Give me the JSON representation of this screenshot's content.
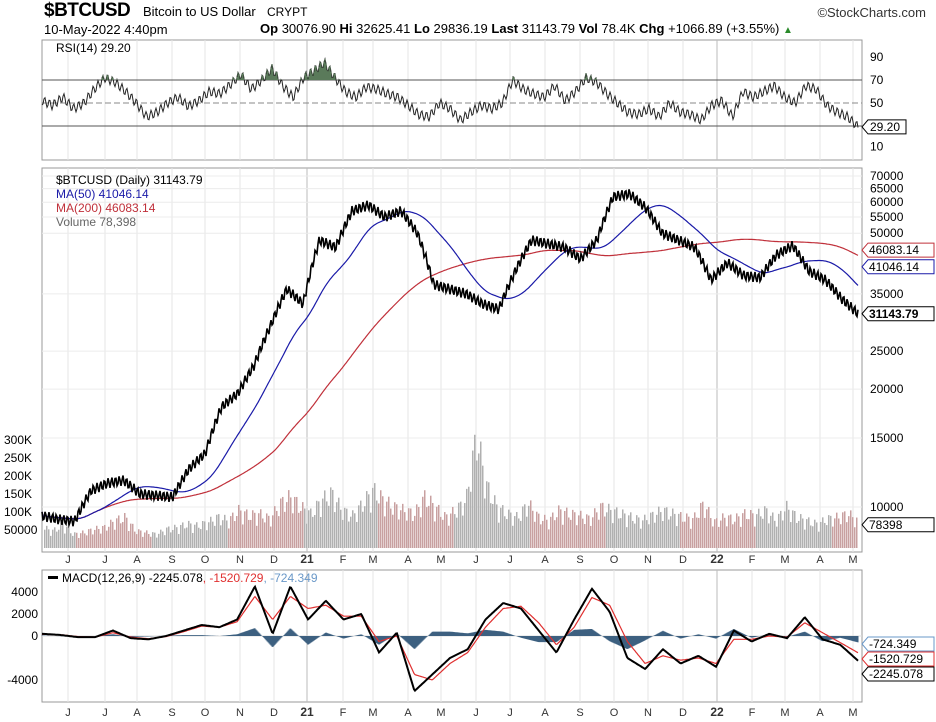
{
  "header": {
    "symbol": "$BTCUSD",
    "name": "Bitcoin to US Dollar",
    "exchange": "CRYPT",
    "brand": "©StockCharts.com",
    "date": "10-May-2022 4:40pm",
    "op_label": "Op",
    "op": "30076.90",
    "hi_label": "Hi",
    "hi": "32625.41",
    "lo_label": "Lo",
    "lo": "29836.19",
    "last_label": "Last",
    "last": "31143.79",
    "vol_label": "Vol",
    "vol": "78.4K",
    "chg_label": "Chg",
    "chg": "+1066.89 (+3.55%)",
    "up_arrow": "▲"
  },
  "colors": {
    "price": "#000000",
    "ma50": "#1a1aa8",
    "ma200": "#c0303a",
    "volume": "#b0a0a0",
    "rsi_fill": "#5a7a5a",
    "macd": "#000000",
    "signal": "#e03030",
    "hist": "#3d6080",
    "hist_label": "#6a98c8"
  },
  "chart_data": [
    {
      "type": "line",
      "title": "RSI(14) 29.20",
      "ylim": [
        0,
        100
      ],
      "yticks": [
        "90",
        "70",
        "50",
        "10"
      ],
      "current_label": "29.20",
      "values": [
        52,
        48,
        55,
        45,
        50,
        62,
        72,
        68,
        60,
        50,
        38,
        42,
        50,
        55,
        47,
        52,
        60,
        58,
        66,
        75,
        62,
        70,
        80,
        65,
        55,
        72,
        78,
        85,
        72,
        60,
        55,
        64,
        62,
        58,
        55,
        48,
        40,
        38,
        50,
        45,
        35,
        42,
        48,
        45,
        50,
        70,
        62,
        58,
        55,
        65,
        52,
        60,
        72,
        68,
        58,
        50,
        42,
        40,
        45,
        38,
        50,
        42,
        40,
        35,
        48,
        52,
        38,
        60,
        55,
        60,
        65,
        55,
        50,
        65,
        62,
        48,
        42,
        38,
        29.2
      ]
    },
    {
      "type": "line",
      "title": "$BTCUSD (Daily) 31143.79",
      "scale": "log",
      "ylim": [
        8500,
        72000
      ],
      "yticks": [
        "70000",
        "65000",
        "60000",
        "55000",
        "50000",
        "35000",
        "25000",
        "20000",
        "15000",
        "10000"
      ],
      "legend": [
        "$BTCUSD (Daily) 31143.79",
        "MA(50) 41046.14",
        "MA(200) 46083.14",
        "Volume 78,398"
      ],
      "value_labels": {
        "ma200": "46083.14",
        "ma50": "41046.14",
        "last": "31143.79",
        "volume": "78398"
      },
      "price": [
        9500,
        9300,
        9200,
        11000,
        11500,
        11700,
        10800,
        10700,
        10600,
        12500,
        13700,
        18000,
        19500,
        23000,
        29000,
        36000,
        33000,
        48000,
        46000,
        57000,
        59000,
        55000,
        57000,
        50000,
        37000,
        36000,
        35000,
        33000,
        32000,
        40000,
        48000,
        47000,
        46000,
        43000,
        48000,
        62000,
        63000,
        58000,
        50000,
        48000,
        46000,
        38000,
        42000,
        39000,
        38500,
        44000,
        46500,
        40000,
        38000,
        34000,
        31143.79
      ],
      "volume_ticks": [
        "300K",
        "250K",
        "200K",
        "150K",
        "100K",
        "50000"
      ],
      "volume": [
        60,
        50,
        70,
        40,
        45,
        55,
        60,
        80,
        90,
        50,
        45,
        40,
        55,
        60,
        70,
        65,
        75,
        90,
        80,
        110,
        95,
        100,
        85,
        130,
        150,
        120,
        100,
        140,
        160,
        110,
        95,
        130,
        170,
        140,
        120,
        110,
        100,
        150,
        120,
        90,
        110,
        140,
        330,
        180,
        120,
        100,
        90,
        130,
        90,
        80,
        110,
        100,
        95,
        85,
        120,
        110,
        100,
        90,
        80,
        95,
        110,
        100,
        90,
        85,
        130,
        75,
        90,
        85,
        100,
        95,
        110,
        80,
        120,
        90,
        80,
        70,
        85,
        90,
        100,
        78.398
      ]
    },
    {
      "type": "line",
      "title": "MACD(12,26,9)",
      "values_label": {
        "macd": "-2245.078",
        "signal": ", -1520.729",
        "hist": ", -724.349"
      },
      "ylim": [
        -6000,
        6000
      ],
      "yticks": [
        "4000",
        "2000",
        "0",
        "-4000"
      ],
      "macd": [
        200,
        100,
        -100,
        -100,
        500,
        -200,
        -300,
        0,
        500,
        1000,
        800,
        1500,
        4500,
        200,
        4500,
        1500,
        3200,
        1500,
        2000,
        -1500,
        300,
        -5000,
        -3500,
        -2000,
        -1200,
        1500,
        3000,
        2500,
        500,
        -1500,
        1500,
        4300,
        2200,
        -2000,
        -3000,
        -1200,
        -2500,
        -1800,
        -2800,
        500,
        -500,
        200,
        -200,
        1700,
        -300,
        -800,
        -2245.078
      ],
      "signal": [
        150,
        120,
        -50,
        -100,
        300,
        -100,
        -250,
        -50,
        400,
        900,
        800,
        1300,
        3600,
        1500,
        3600,
        2500,
        2800,
        1800,
        1800,
        -500,
        0,
        -3500,
        -4000,
        -2500,
        -1500,
        800,
        2500,
        2700,
        1200,
        -800,
        800,
        3500,
        2800,
        -500,
        -2500,
        -1800,
        -2200,
        -2000,
        -2500,
        -300,
        -300,
        0,
        -100,
        1200,
        300,
        -600,
        -1520.729
      ]
    },
    {
      "type": "axis",
      "months": [
        "J",
        "J",
        "A",
        "S",
        "O",
        "N",
        "D",
        "21",
        "F",
        "M",
        "A",
        "M",
        "J",
        "J",
        "A",
        "S",
        "O",
        "N",
        "D",
        "22",
        "F",
        "M",
        "A",
        "M"
      ]
    }
  ]
}
